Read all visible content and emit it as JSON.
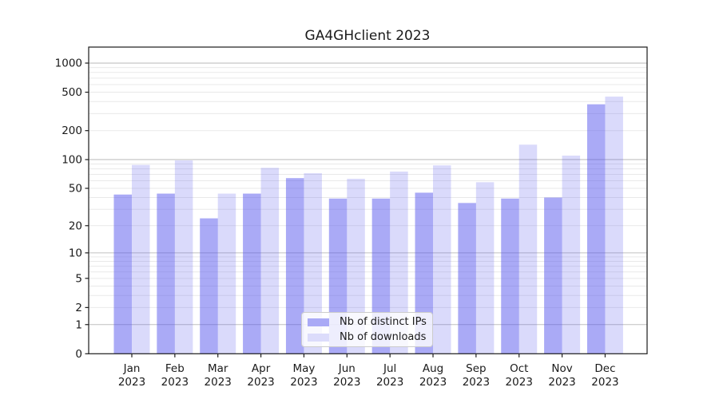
{
  "title": "GA4GHclient 2023",
  "legend": {
    "items": [
      {
        "label": "Nb of distinct IPs",
        "color": "#aaaaf6"
      },
      {
        "label": "Nb of downloads",
        "color": "#dcdcfb"
      }
    ]
  },
  "chart_data": {
    "type": "bar",
    "title": "GA4GHclient 2023",
    "x_categories": [
      "Jan",
      "Feb",
      "Mar",
      "Apr",
      "May",
      "Jun",
      "Jul",
      "Aug",
      "Sep",
      "Oct",
      "Nov",
      "Dec"
    ],
    "x_year": "2023",
    "series": [
      {
        "name": "Nb of distinct IPs",
        "values": [
          43,
          44,
          24,
          44,
          64,
          39,
          39,
          45,
          35,
          39,
          40,
          375
        ],
        "fill": "rgba(85,85,238,0.5)",
        "legend_color": "#aaaaf6"
      },
      {
        "name": "Nb of downloads",
        "values": [
          88,
          98,
          44,
          82,
          72,
          63,
          75,
          87,
          58,
          143,
          110,
          450
        ],
        "fill": "rgba(85,85,238,0.22)",
        "legend_color": "#dcdcfb"
      }
    ],
    "y_ticks": [
      0,
      1,
      2,
      5,
      10,
      20,
      50,
      100,
      200,
      500,
      1000
    ],
    "y_scale": "log10(value+1)",
    "ylim": [
      0,
      1500
    ],
    "grid": true,
    "legend_position": "lower center",
    "xlabel": "",
    "ylabel": ""
  },
  "colors": {
    "background": "#ffffff",
    "grid_minor": "#e9e9e9",
    "grid_major": "#c0c0c0",
    "spine": "#1c1c1c",
    "tick": "#1c1c1c",
    "text": "#1a1a1a"
  }
}
